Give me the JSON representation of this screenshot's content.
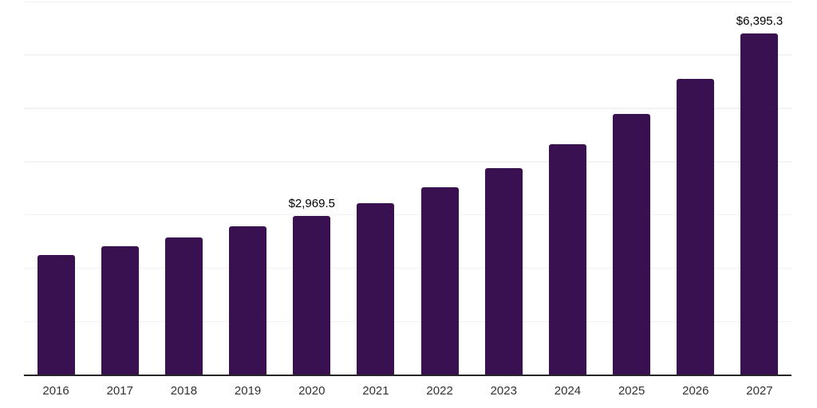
{
  "chart_data": {
    "type": "bar",
    "title": "",
    "xlabel": "",
    "ylabel": "",
    "categories": [
      "2016",
      "2017",
      "2018",
      "2019",
      "2020",
      "2021",
      "2022",
      "2023",
      "2024",
      "2025",
      "2026",
      "2027"
    ],
    "values": [
      2250.0,
      2405.0,
      2580.0,
      2780.0,
      2969.5,
      3220.0,
      3520.0,
      3880.0,
      4330.0,
      4895.0,
      5555.0,
      6395.3
    ],
    "data_labels": [
      "",
      "",
      "",
      "",
      "$2,969.5",
      "",
      "",
      "",
      "",
      "",
      "",
      "$6,395.3"
    ],
    "ylim": [
      0,
      7000
    ],
    "gridline_interval": 1000,
    "grid": "horizontal",
    "legend_position": "none",
    "y_axis_ticks_visible": false,
    "bar_color": "#3A1150",
    "grid_color": "#F2F2F2",
    "axis_line_color": "#262626",
    "tick_label_color": "#333333",
    "data_label_color": "#000000",
    "background_color": "#FFFFFF"
  }
}
